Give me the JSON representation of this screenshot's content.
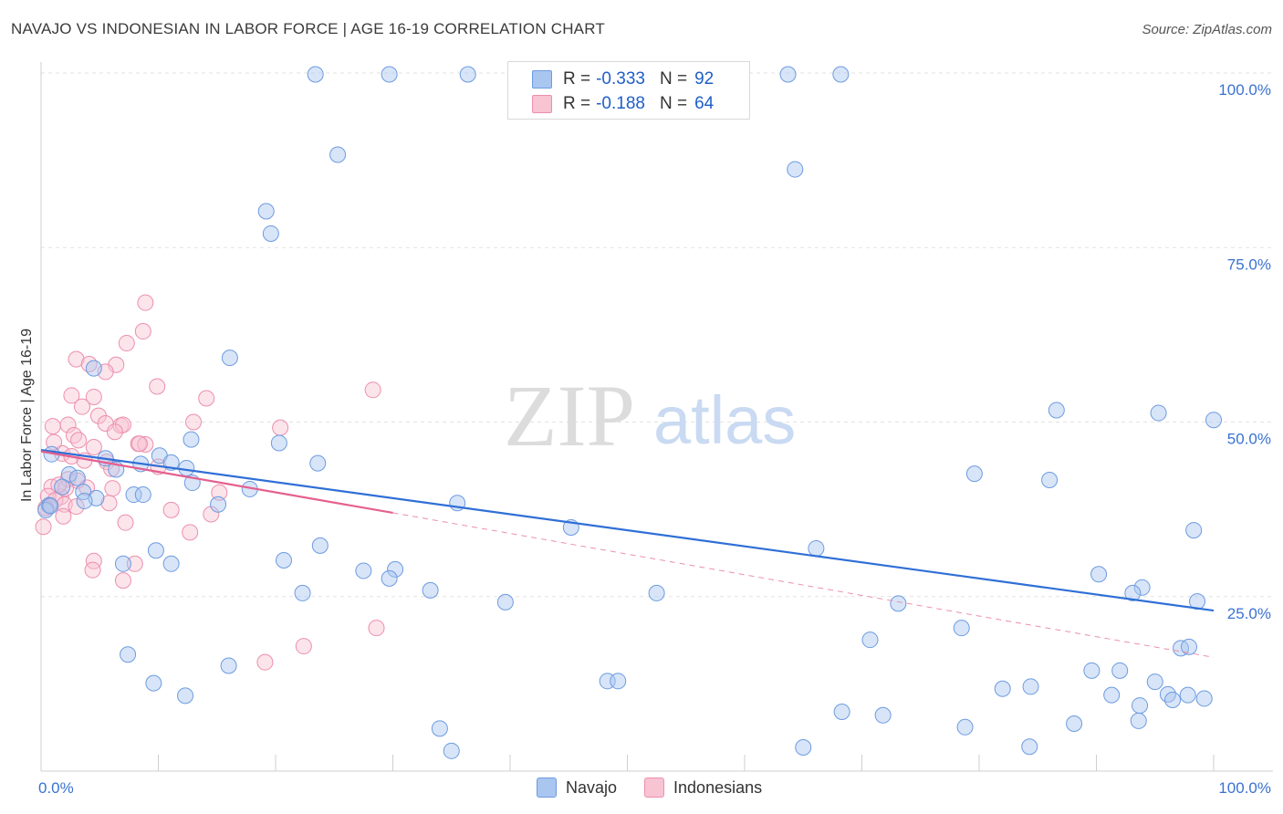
{
  "header": {
    "title": "NAVAJO VS INDONESIAN IN LABOR FORCE | AGE 16-19 CORRELATION CHART",
    "source": "Source: ZipAtlas.com"
  },
  "watermark": {
    "zip": "ZIP",
    "atlas": "atlas"
  },
  "legend": {
    "items": [
      {
        "r_label": "R =",
        "r_value": "-0.333",
        "n_label": "N =",
        "n_value": "92",
        "color": "#a9c6f0",
        "border": "#6d9be0"
      },
      {
        "r_label": "R =",
        "r_value": "-0.188",
        "n_label": "N =",
        "n_value": "64",
        "color": "#f8c3d3",
        "border": "#ec8fae"
      }
    ]
  },
  "bottom_legend": {
    "items": [
      "Navajo",
      "Indonesians"
    ]
  },
  "chart_data": {
    "type": "scatter",
    "title": "NAVAJO VS INDONESIAN IN LABOR FORCE | AGE 16-19 CORRELATION CHART",
    "xlabel": "",
    "ylabel": "In Labor Force | Age 16-19",
    "xlim": [
      0,
      100
    ],
    "ylim": [
      0,
      100
    ],
    "x_tick_labels": [
      "0.0%",
      "100.0%"
    ],
    "y_tick_labels": [
      "25.0%",
      "50.0%",
      "75.0%",
      "100.0%"
    ],
    "y_ticks": [
      25,
      50,
      75,
      100
    ],
    "grid": true,
    "series": [
      {
        "name": "Navajo",
        "color": "#6d9be0",
        "fill": "#a9c6f0",
        "trend": {
          "x0": 0,
          "y0": 46,
          "x1": 100,
          "y1": 23
        },
        "points": [
          [
            23.4,
            99.8
          ],
          [
            29.7,
            99.8
          ],
          [
            36.4,
            99.8
          ],
          [
            63.7,
            99.8
          ],
          [
            68.2,
            99.8
          ],
          [
            55.9,
            96.7
          ],
          [
            25.3,
            88.3
          ],
          [
            64.3,
            86.2
          ],
          [
            19.2,
            80.2
          ],
          [
            19.6,
            77.0
          ],
          [
            16.1,
            59.2
          ],
          [
            4.5,
            57.7
          ],
          [
            100,
            50.3
          ],
          [
            86.6,
            51.7
          ],
          [
            95.3,
            51.3
          ],
          [
            12.8,
            47.5
          ],
          [
            20.3,
            47.0
          ],
          [
            0.9,
            45.4
          ],
          [
            5.5,
            44.8
          ],
          [
            8.5,
            44.0
          ],
          [
            10.1,
            45.2
          ],
          [
            11.1,
            44.2
          ],
          [
            12.4,
            43.4
          ],
          [
            6.4,
            43.2
          ],
          [
            2.4,
            42.5
          ],
          [
            3.1,
            42.0
          ],
          [
            1.8,
            40.7
          ],
          [
            3.6,
            40.0
          ],
          [
            4.7,
            39.1
          ],
          [
            12.9,
            41.3
          ],
          [
            17.8,
            40.4
          ],
          [
            23.6,
            44.1
          ],
          [
            79.6,
            42.6
          ],
          [
            86.0,
            41.7
          ],
          [
            0.7,
            38.1
          ],
          [
            7.9,
            39.6
          ],
          [
            8.7,
            39.6
          ],
          [
            15.1,
            38.2
          ],
          [
            35.5,
            38.4
          ],
          [
            0.4,
            37.4
          ],
          [
            0.8,
            38.0
          ],
          [
            3.7,
            38.7
          ],
          [
            45.2,
            34.9
          ],
          [
            98.3,
            34.5
          ],
          [
            23.8,
            32.3
          ],
          [
            66.1,
            31.9
          ],
          [
            9.8,
            31.6
          ],
          [
            20.7,
            30.2
          ],
          [
            27.5,
            28.7
          ],
          [
            30.2,
            28.9
          ],
          [
            90.2,
            28.2
          ],
          [
            29.7,
            27.6
          ],
          [
            39.6,
            24.2
          ],
          [
            93.9,
            26.3
          ],
          [
            33.2,
            25.9
          ],
          [
            93.1,
            25.5
          ],
          [
            98.6,
            24.3
          ],
          [
            7.0,
            29.7
          ],
          [
            11.1,
            29.7
          ],
          [
            22.3,
            25.5
          ],
          [
            52.5,
            25.5
          ],
          [
            73.1,
            24.0
          ],
          [
            78.5,
            20.5
          ],
          [
            70.7,
            18.8
          ],
          [
            97.2,
            17.6
          ],
          [
            97.9,
            17.8
          ],
          [
            7.4,
            16.7
          ],
          [
            16.0,
            15.1
          ],
          [
            89.6,
            14.4
          ],
          [
            92.0,
            14.4
          ],
          [
            9.6,
            12.6
          ],
          [
            48.3,
            12.9
          ],
          [
            49.2,
            12.9
          ],
          [
            82.0,
            11.8
          ],
          [
            84.4,
            12.1
          ],
          [
            95.0,
            12.8
          ],
          [
            12.3,
            10.8
          ],
          [
            91.3,
            10.9
          ],
          [
            96.1,
            11.0
          ],
          [
            97.8,
            10.9
          ],
          [
            96.5,
            10.2
          ],
          [
            99.2,
            10.4
          ],
          [
            93.7,
            9.4
          ],
          [
            68.3,
            8.5
          ],
          [
            71.8,
            8.0
          ],
          [
            93.6,
            7.2
          ],
          [
            88.1,
            6.8
          ],
          [
            78.8,
            6.3
          ],
          [
            34.0,
            6.1
          ],
          [
            65.0,
            3.4
          ],
          [
            35.0,
            2.9
          ],
          [
            84.3,
            3.5
          ]
        ]
      },
      {
        "name": "Indonesians",
        "color": "#ec8fae",
        "fill": "#f8c3d3",
        "trend": {
          "x0": 0,
          "y0": 45.8,
          "x1": 30,
          "y1": 37.0
        },
        "trend_extension": {
          "x0": 30,
          "y0": 37.0,
          "x1": 100,
          "y1": 16.3
        },
        "points": [
          [
            8.9,
            67.1
          ],
          [
            8.7,
            63.0
          ],
          [
            7.3,
            61.3
          ],
          [
            3.0,
            59.0
          ],
          [
            4.1,
            58.3
          ],
          [
            6.4,
            58.2
          ],
          [
            5.5,
            57.2
          ],
          [
            9.9,
            55.1
          ],
          [
            2.6,
            53.8
          ],
          [
            4.5,
            53.6
          ],
          [
            28.3,
            54.6
          ],
          [
            14.1,
            53.4
          ],
          [
            3.5,
            52.2
          ],
          [
            4.9,
            50.9
          ],
          [
            5.5,
            49.8
          ],
          [
            6.8,
            49.5
          ],
          [
            7.0,
            49.6
          ],
          [
            1.0,
            49.4
          ],
          [
            2.3,
            49.6
          ],
          [
            6.3,
            48.6
          ],
          [
            13.0,
            50.0
          ],
          [
            20.4,
            49.2
          ],
          [
            2.8,
            48.1
          ],
          [
            3.2,
            47.4
          ],
          [
            4.5,
            46.4
          ],
          [
            8.3,
            46.9
          ],
          [
            8.9,
            46.8
          ],
          [
            8.4,
            46.9
          ],
          [
            1.8,
            45.5
          ],
          [
            2.6,
            45.1
          ],
          [
            5.6,
            44.3
          ],
          [
            6.0,
            43.3
          ],
          [
            2.3,
            41.8
          ],
          [
            3.1,
            41.6
          ],
          [
            0.9,
            40.7
          ],
          [
            1.7,
            39.3
          ],
          [
            0.6,
            39.4
          ],
          [
            3.9,
            40.6
          ],
          [
            1.2,
            38.8
          ],
          [
            2.0,
            38.2
          ],
          [
            0.7,
            37.9
          ],
          [
            0.4,
            37.7
          ],
          [
            5.8,
            38.4
          ],
          [
            3.0,
            37.9
          ],
          [
            11.1,
            37.4
          ],
          [
            14.5,
            36.8
          ],
          [
            1.9,
            36.5
          ],
          [
            7.2,
            35.6
          ],
          [
            12.7,
            34.2
          ],
          [
            4.5,
            30.1
          ],
          [
            8.0,
            29.7
          ],
          [
            4.4,
            28.8
          ],
          [
            7.0,
            27.3
          ],
          [
            22.4,
            17.9
          ],
          [
            28.6,
            20.5
          ],
          [
            19.1,
            15.6
          ],
          [
            0.2,
            35.0
          ],
          [
            2.1,
            40.5
          ],
          [
            1.5,
            41.0
          ],
          [
            3.7,
            44.5
          ],
          [
            6.1,
            40.5
          ],
          [
            10.0,
            43.6
          ],
          [
            1.1,
            47.1
          ],
          [
            15.2,
            39.9
          ]
        ]
      }
    ]
  }
}
